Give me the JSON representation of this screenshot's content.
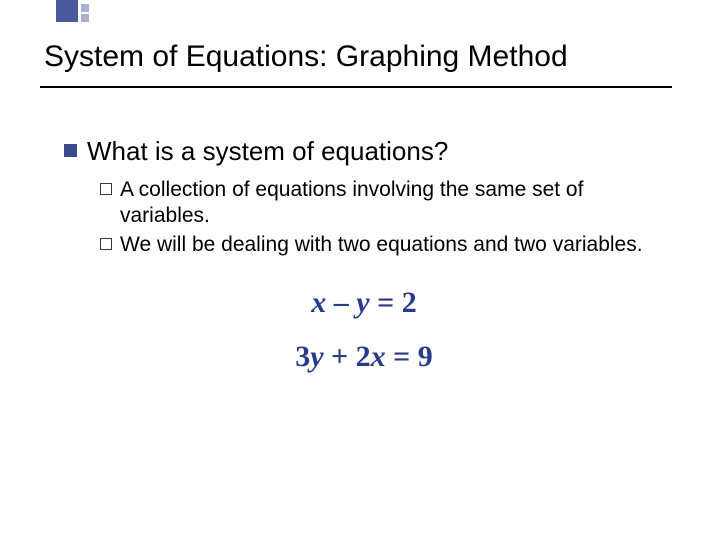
{
  "decoration": {
    "big_square_color": "#4a5a9e",
    "small_square_color": "#aab0d2"
  },
  "title": "System of Equations: Graphing Method",
  "main_bullet": "What is a system of equations?",
  "sub_bullets": [
    "A collection of equations involving the same set of variables.",
    "We will be dealing with two equations and two variables."
  ],
  "equations": [
    {
      "html_parts": [
        "<span class='var'>x</span> – <span class='var'>y</span> = 2"
      ]
    },
    {
      "html_parts": [
        "3<span class='var'>y</span> + 2<span class='var'>x</span> = 9"
      ]
    }
  ],
  "styles": {
    "title_fontsize": 30,
    "bullet_fontsize": 26,
    "sub_fontsize": 21,
    "eq_fontsize": 30,
    "eq_color": "#2a3a8a",
    "bullet_color": "#3a4a8a",
    "text_color": "#000000",
    "background": "#ffffff",
    "rule_color": "#000000"
  }
}
